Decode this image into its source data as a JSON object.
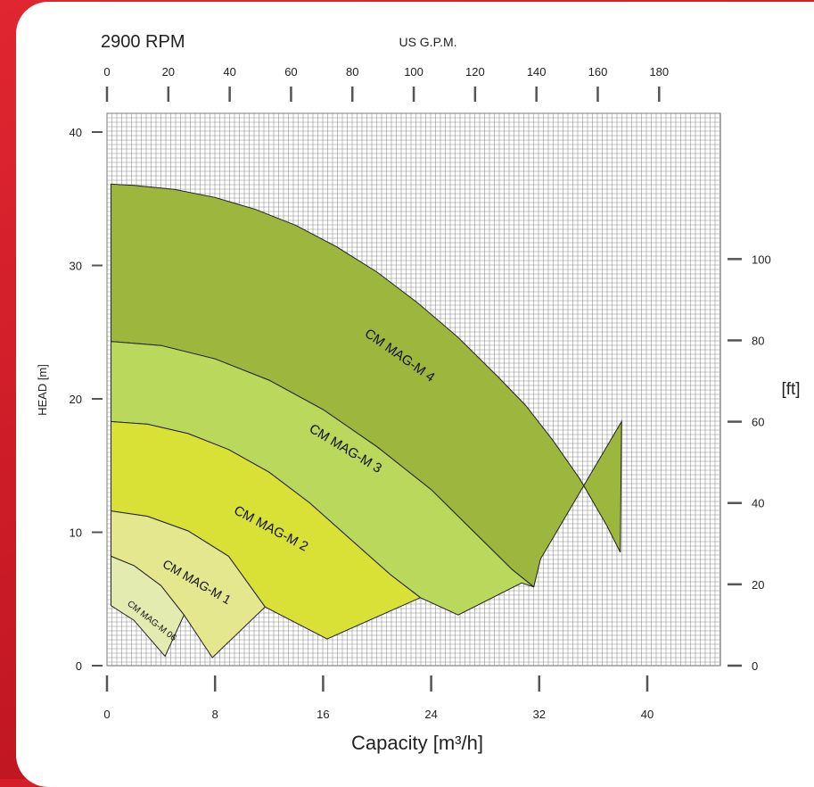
{
  "chart_data": {
    "type": "area",
    "title": "2900 RPM",
    "top_axis_label": "US G.P.M.",
    "xlabel": "Capacity  [m³/h]",
    "ylabel": "HEAD [m]",
    "right_axis_label": "[ft]",
    "xlim": [
      0,
      44
    ],
    "ylim": [
      0,
      40
    ],
    "x_ticks": [
      0,
      8,
      16,
      24,
      32,
      40
    ],
    "y_ticks": [
      0,
      10,
      20,
      30,
      40
    ],
    "top_ticks_gpm": [
      0,
      20,
      40,
      60,
      80,
      100,
      120,
      140,
      160,
      180
    ],
    "right_ticks_ft": [
      0,
      20,
      40,
      60,
      80,
      100
    ],
    "grid": true,
    "colors": {
      "CM MAG-M 06": "#e4ebb0",
      "CM MAG-M 1": "#e4e78e",
      "CM MAG-M 2": "#d9e137",
      "CM MAG-M 3": "#b9d85c",
      "CM MAG-M 4": "#9db63d"
    },
    "series": [
      {
        "name": "CM MAG-M 4",
        "upper": [
          [
            0.3,
            36.1
          ],
          [
            2,
            36.0
          ],
          [
            5,
            35.7
          ],
          [
            8,
            35.1
          ],
          [
            11,
            34.2
          ],
          [
            14,
            33.0
          ],
          [
            17,
            31.4
          ],
          [
            20,
            29.5
          ],
          [
            23,
            27.2
          ],
          [
            26,
            24.6
          ],
          [
            29,
            21.6
          ],
          [
            31,
            19.5
          ],
          [
            33,
            16.9
          ],
          [
            35,
            14.0
          ],
          [
            37,
            10.5
          ],
          [
            38,
            8.5
          ],
          [
            38.1,
            18.3
          ]
        ],
        "lower": [
          [
            0.3,
            24.3
          ],
          [
            4,
            24.0
          ],
          [
            8,
            23.0
          ],
          [
            12,
            21.4
          ],
          [
            16,
            19.2
          ],
          [
            20,
            16.4
          ],
          [
            24,
            13.2
          ],
          [
            27,
            10.2
          ],
          [
            30,
            7.2
          ],
          [
            31.6,
            5.9
          ],
          [
            32.1,
            8.0
          ]
        ],
        "rightEdge": [
          [
            38.1,
            18.3
          ],
          [
            32.1,
            8.0
          ]
        ]
      },
      {
        "name": "CM MAG-M 3",
        "upper": [
          [
            0.3,
            24.3
          ],
          [
            4,
            24.0
          ],
          [
            8,
            23.0
          ],
          [
            12,
            21.4
          ],
          [
            16,
            19.2
          ],
          [
            20,
            16.4
          ],
          [
            24,
            13.2
          ],
          [
            27,
            10.2
          ],
          [
            30,
            7.2
          ],
          [
            31.6,
            5.9
          ]
        ],
        "lower": [
          [
            0.3,
            18.3
          ],
          [
            3,
            18.1
          ],
          [
            6,
            17.4
          ],
          [
            9,
            16.2
          ],
          [
            12,
            14.5
          ],
          [
            15,
            12.2
          ],
          [
            18,
            9.5
          ],
          [
            21,
            6.8
          ],
          [
            23.2,
            5.1
          ]
        ],
        "rightEdge": [
          [
            31.6,
            5.9
          ],
          [
            30.7,
            6.2
          ],
          [
            26,
            3.8
          ],
          [
            23.2,
            5.1
          ]
        ]
      },
      {
        "name": "CM MAG-M 2",
        "upper": [
          [
            0.3,
            18.3
          ],
          [
            3,
            18.1
          ],
          [
            6,
            17.4
          ],
          [
            9,
            16.2
          ],
          [
            12,
            14.5
          ],
          [
            15,
            12.2
          ],
          [
            18,
            9.5
          ],
          [
            21,
            6.8
          ],
          [
            23.2,
            5.1
          ]
        ],
        "lower": [
          [
            0.3,
            11.6
          ],
          [
            3,
            11.2
          ],
          [
            6,
            10.1
          ],
          [
            9,
            8.2
          ],
          [
            11.7,
            4.4
          ]
        ],
        "rightEdge": [
          [
            23.2,
            5.1
          ],
          [
            16.3,
            2.0
          ],
          [
            11.7,
            4.4
          ]
        ]
      },
      {
        "name": "CM MAG-M 1",
        "upper": [
          [
            0.3,
            11.6
          ],
          [
            3,
            11.2
          ],
          [
            6,
            10.1
          ],
          [
            9,
            8.2
          ],
          [
            11.7,
            4.4
          ]
        ],
        "lower": [
          [
            0.3,
            8.2
          ],
          [
            2,
            7.5
          ],
          [
            4,
            6.0
          ],
          [
            5.7,
            3.8
          ]
        ],
        "rightEdge": [
          [
            11.7,
            4.4
          ],
          [
            7.8,
            0.6
          ],
          [
            5.7,
            3.8
          ]
        ]
      },
      {
        "name": "CM MAG-M 06",
        "upper": [
          [
            0.3,
            8.2
          ],
          [
            2,
            7.5
          ],
          [
            4,
            6.0
          ],
          [
            5.7,
            3.8
          ]
        ],
        "lower": [
          [
            0.3,
            4.5
          ],
          [
            2,
            3.4
          ],
          [
            4.3,
            0.7
          ]
        ],
        "rightEdge": [
          [
            5.7,
            3.8
          ],
          [
            4.3,
            0.7
          ]
        ]
      }
    ],
    "labels": [
      {
        "text": "CM MAG-M 4",
        "x": 21.5,
        "y": 23.0,
        "angle": 35,
        "size": 15
      },
      {
        "text": "CM MAG-M 3",
        "x": 17.5,
        "y": 16.0,
        "angle": 31,
        "size": 15
      },
      {
        "text": "CM MAG-M 2",
        "x": 12.0,
        "y": 10.0,
        "angle": 28,
        "size": 15
      },
      {
        "text": "CM MAG-M 1",
        "x": 6.5,
        "y": 6.0,
        "angle": 30,
        "size": 14
      },
      {
        "text": "CM MAG-M 06",
        "x": 3.2,
        "y": 3.2,
        "angle": 38,
        "size": 10
      }
    ]
  }
}
